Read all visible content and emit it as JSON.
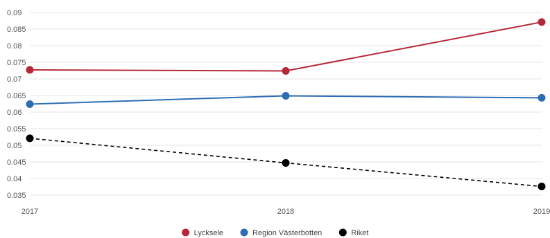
{
  "chart_data": {
    "type": "line",
    "title": "",
    "xlabel": "",
    "ylabel": "",
    "x": [
      "2017",
      "2018",
      "2019"
    ],
    "ylim": [
      0.03,
      0.09
    ],
    "yticks": [
      0.035,
      0.04,
      0.045,
      0.05,
      0.055,
      0.06,
      0.065,
      0.07,
      0.075,
      0.08,
      0.085,
      0.09
    ],
    "ytick_labels": [
      "0.035",
      "0.04",
      "0.045",
      "0.05",
      "0.055",
      "0.06",
      "0.065",
      "0.07",
      "0.075",
      "0.08",
      "0.085",
      "0.09"
    ],
    "grid": true,
    "legend_position": "bottom",
    "series": [
      {
        "name": "Lycksele",
        "color": "#b5283a",
        "dashed": false,
        "values": [
          0.0727,
          0.0724,
          0.0871
        ]
      },
      {
        "name": "Region Västerbotten",
        "color": "#2e6db4",
        "dashed": false,
        "values": [
          0.0624,
          0.0649,
          0.0643
        ]
      },
      {
        "name": "Riket",
        "color": "#000000",
        "dashed": true,
        "values": [
          0.0521,
          0.0447,
          0.0376
        ]
      }
    ]
  }
}
